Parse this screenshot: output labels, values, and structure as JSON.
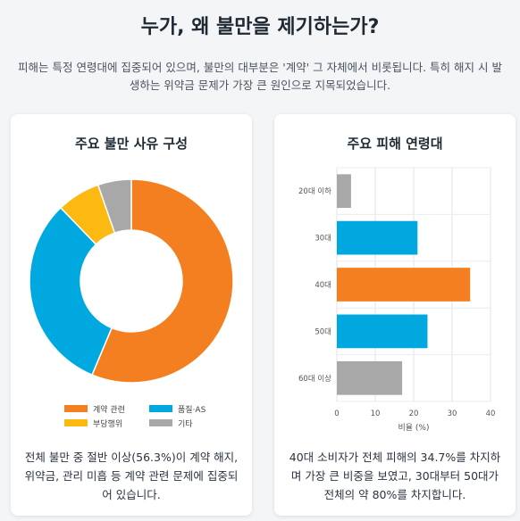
{
  "header": {
    "title": "누가, 왜 불만을 제기하는가?",
    "subtitle": "피해는 특정 연령대에 집중되어 있으며, 불만의 대부분은 '계약' 그 자체에서 비롯됩니다. 특히 해지 시 발생하는 위약금 문제가 가장 큰 원인으로 지목되었습니다."
  },
  "left_card": {
    "title": "주요 불만 사유 구성",
    "description": "전체 불만 중 절반 이상(56.3%)이 계약 해지, 위약금, 관리 미흡 등 계약 관련 문제에 집중되어 있습니다."
  },
  "right_card": {
    "title": "주요 피해 연령대",
    "description": "40대 소비자가 전체 피해의 34.7%를 차지하며 가장 큰 비중을 보였고, 30대부터 50대가 전체의 약 80%를 차지합니다."
  },
  "chart_data": [
    {
      "type": "pie",
      "variant": "doughnut",
      "categories": [
        "계약 관련",
        "품질·AS",
        "부당행위",
        "기타"
      ],
      "values": [
        56.3,
        31.5,
        6.9,
        5.3
      ],
      "colors": [
        "#f47f20",
        "#00a8e0",
        "#fbb911",
        "#a8a8a8"
      ],
      "legend_position": "bottom"
    },
    {
      "type": "bar",
      "orientation": "horizontal",
      "categories": [
        "20대 이하",
        "30대",
        "40대",
        "50대",
        "60대 이상"
      ],
      "values": [
        3.7,
        21.0,
        34.7,
        23.6,
        17.0
      ],
      "colors": [
        "#a8a8a8",
        "#00a8e0",
        "#f47f20",
        "#00a8e0",
        "#a8a8a8"
      ],
      "xlabel": "비율 (%)",
      "xlim": [
        0,
        40
      ],
      "xticks": [
        0,
        10,
        20,
        30,
        40
      ],
      "grid": true
    }
  ]
}
